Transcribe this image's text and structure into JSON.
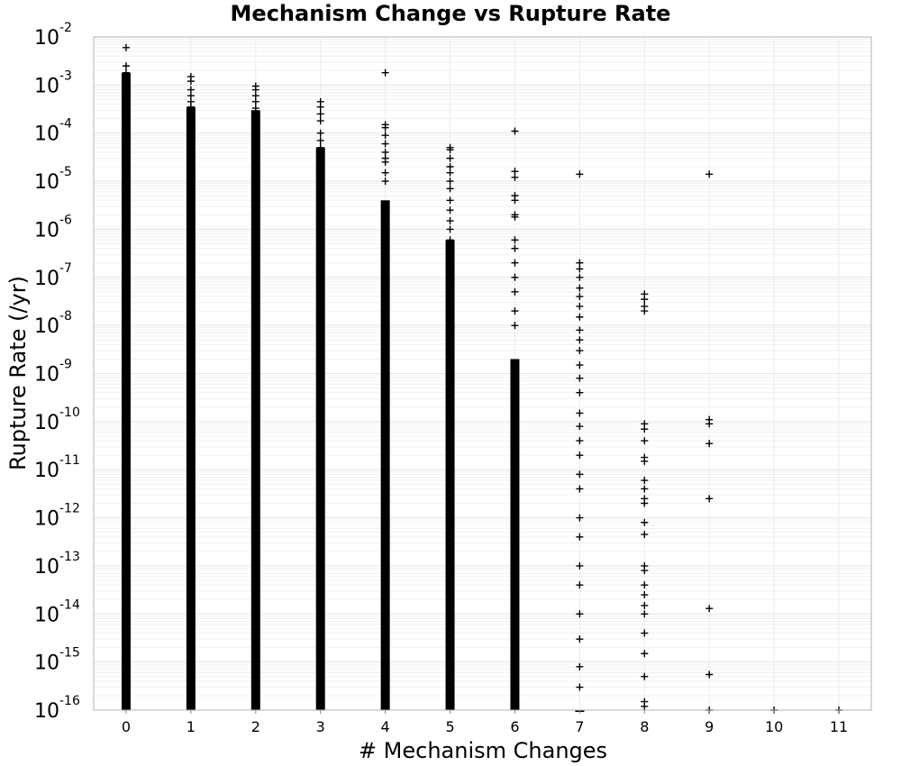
{
  "chart_data": {
    "type": "scatter",
    "title": "Mechanism Change vs Rupture Rate",
    "xlabel": "# Mechanism Changes",
    "ylabel": "Rupture Rate (/yr)",
    "xlim": [
      -0.5,
      11.5
    ],
    "ylim": [
      1e-16,
      0.01
    ],
    "y_scale": "log",
    "grid": true,
    "legend": "none",
    "marker": "plus",
    "marker_color": "#000000",
    "x_ticks": [
      "0",
      "1",
      "2",
      "3",
      "4",
      "5",
      "6",
      "7",
      "8",
      "9",
      "10",
      "11"
    ],
    "y_ticks": [
      {
        "base": "10",
        "exp": "-16"
      },
      {
        "base": "10",
        "exp": "-15"
      },
      {
        "base": "10",
        "exp": "-14"
      },
      {
        "base": "10",
        "exp": "-13"
      },
      {
        "base": "10",
        "exp": "-12"
      },
      {
        "base": "10",
        "exp": "-11"
      },
      {
        "base": "10",
        "exp": "-10"
      },
      {
        "base": "10",
        "exp": "-9"
      },
      {
        "base": "10",
        "exp": "-8"
      },
      {
        "base": "10",
        "exp": "-7"
      },
      {
        "base": "10",
        "exp": "-6"
      },
      {
        "base": "10",
        "exp": "-5"
      },
      {
        "base": "10",
        "exp": "-4"
      },
      {
        "base": "10",
        "exp": "-3"
      },
      {
        "base": "10",
        "exp": "-2"
      }
    ],
    "series": [
      {
        "points": [
          {
            "x": 0,
            "y": 0.006
          },
          {
            "x": 0,
            "y": 0.0025
          },
          {
            "x": 0,
            "y": 0.0018
          },
          {
            "x": 0,
            "y": 0.0015
          },
          {
            "x": 0,
            "y": 0.001
          },
          {
            "x": 0,
            "y": 0.0005
          },
          {
            "x": 1,
            "y": 0.0015
          },
          {
            "x": 1,
            "y": 0.0012
          },
          {
            "x": 1,
            "y": 0.0008
          },
          {
            "x": 1,
            "y": 0.0006
          },
          {
            "x": 1,
            "y": 0.00045
          },
          {
            "x": 1,
            "y": 0.00035
          },
          {
            "x": 2,
            "y": 0.00095
          },
          {
            "x": 2,
            "y": 0.0008
          },
          {
            "x": 2,
            "y": 0.0006
          },
          {
            "x": 2,
            "y": 0.00045
          },
          {
            "x": 2,
            "y": 0.00033
          },
          {
            "x": 3,
            "y": 0.00045
          },
          {
            "x": 3,
            "y": 0.00035
          },
          {
            "x": 3,
            "y": 0.00025
          },
          {
            "x": 3,
            "y": 0.00018
          },
          {
            "x": 3,
            "y": 0.0001
          },
          {
            "x": 3,
            "y": 7e-05
          },
          {
            "x": 3,
            "y": 5e-05
          },
          {
            "x": 4,
            "y": 0.0018
          },
          {
            "x": 4,
            "y": 0.00015
          },
          {
            "x": 4,
            "y": 0.00013
          },
          {
            "x": 4,
            "y": 9e-05
          },
          {
            "x": 4,
            "y": 6e-05
          },
          {
            "x": 4,
            "y": 4e-05
          },
          {
            "x": 4,
            "y": 3e-05
          },
          {
            "x": 4,
            "y": 2.5e-05
          },
          {
            "x": 4,
            "y": 1.5e-05
          },
          {
            "x": 4,
            "y": 1e-05
          },
          {
            "x": 5,
            "y": 5e-05
          },
          {
            "x": 5,
            "y": 4.5e-05
          },
          {
            "x": 5,
            "y": 3e-05
          },
          {
            "x": 5,
            "y": 2e-05
          },
          {
            "x": 5,
            "y": 1.5e-05
          },
          {
            "x": 5,
            "y": 1e-05
          },
          {
            "x": 5,
            "y": 7e-06
          },
          {
            "x": 5,
            "y": 4e-06
          },
          {
            "x": 5,
            "y": 2.5e-06
          },
          {
            "x": 5,
            "y": 1.5e-06
          },
          {
            "x": 5,
            "y": 1e-06
          },
          {
            "x": 5,
            "y": 6e-07
          },
          {
            "x": 6,
            "y": 0.00011
          },
          {
            "x": 6,
            "y": 1.6e-05
          },
          {
            "x": 6,
            "y": 1.2e-05
          },
          {
            "x": 6,
            "y": 5e-06
          },
          {
            "x": 6,
            "y": 4e-06
          },
          {
            "x": 6,
            "y": 2e-06
          },
          {
            "x": 6,
            "y": 1.8e-06
          },
          {
            "x": 6,
            "y": 6e-07
          },
          {
            "x": 6,
            "y": 4e-07
          },
          {
            "x": 6,
            "y": 2e-07
          },
          {
            "x": 6,
            "y": 1e-07
          },
          {
            "x": 6,
            "y": 5e-08
          },
          {
            "x": 6,
            "y": 2e-08
          },
          {
            "x": 6,
            "y": 1e-08
          },
          {
            "x": 7,
            "y": 1.4e-05
          },
          {
            "x": 7,
            "y": 2e-07
          },
          {
            "x": 7,
            "y": 1.5e-07
          },
          {
            "x": 7,
            "y": 1e-07
          },
          {
            "x": 7,
            "y": 6e-08
          },
          {
            "x": 7,
            "y": 4e-08
          },
          {
            "x": 7,
            "y": 2.5e-08
          },
          {
            "x": 7,
            "y": 1.5e-08
          },
          {
            "x": 7,
            "y": 8e-09
          },
          {
            "x": 7,
            "y": 5e-09
          },
          {
            "x": 7,
            "y": 3e-09
          },
          {
            "x": 7,
            "y": 1.5e-09
          },
          {
            "x": 7,
            "y": 8e-10
          },
          {
            "x": 7,
            "y": 4e-10
          },
          {
            "x": 7,
            "y": 1.5e-10
          },
          {
            "x": 7,
            "y": 8e-11
          },
          {
            "x": 7,
            "y": 4e-11
          },
          {
            "x": 7,
            "y": 2e-11
          },
          {
            "x": 7,
            "y": 8e-12
          },
          {
            "x": 7,
            "y": 4e-12
          },
          {
            "x": 7,
            "y": 1e-12
          },
          {
            "x": 7,
            "y": 4e-13
          },
          {
            "x": 7,
            "y": 1e-13
          },
          {
            "x": 7,
            "y": 4e-14
          },
          {
            "x": 7,
            "y": 1e-14
          },
          {
            "x": 7,
            "y": 3e-15
          },
          {
            "x": 7,
            "y": 8e-16
          },
          {
            "x": 7,
            "y": 3e-16
          },
          {
            "x": 8,
            "y": 4.5e-08
          },
          {
            "x": 8,
            "y": 3.5e-08
          },
          {
            "x": 8,
            "y": 2.5e-08
          },
          {
            "x": 8,
            "y": 2e-08
          },
          {
            "x": 8,
            "y": 9e-11
          },
          {
            "x": 8,
            "y": 7e-11
          },
          {
            "x": 8,
            "y": 4e-11
          },
          {
            "x": 8,
            "y": 1.8e-11
          },
          {
            "x": 8,
            "y": 1.5e-11
          },
          {
            "x": 8,
            "y": 6e-12
          },
          {
            "x": 8,
            "y": 4e-12
          },
          {
            "x": 8,
            "y": 2.5e-12
          },
          {
            "x": 8,
            "y": 2e-12
          },
          {
            "x": 8,
            "y": 8e-13
          },
          {
            "x": 8,
            "y": 4.5e-13
          },
          {
            "x": 8,
            "y": 1e-13
          },
          {
            "x": 8,
            "y": 8e-14
          },
          {
            "x": 8,
            "y": 4e-14
          },
          {
            "x": 8,
            "y": 2.5e-14
          },
          {
            "x": 8,
            "y": 1.5e-14
          },
          {
            "x": 8,
            "y": 1e-14
          },
          {
            "x": 8,
            "y": 4e-15
          },
          {
            "x": 8,
            "y": 1.5e-15
          },
          {
            "x": 8,
            "y": 5e-16
          },
          {
            "x": 8,
            "y": 1.5e-16
          },
          {
            "x": 8,
            "y": 1.2e-16
          },
          {
            "x": 9,
            "y": 1.4e-05
          },
          {
            "x": 9,
            "y": 1.1e-10
          },
          {
            "x": 9,
            "y": 9e-11
          },
          {
            "x": 9,
            "y": 3.5e-11
          },
          {
            "x": 9,
            "y": 2.5e-12
          },
          {
            "x": 9,
            "y": 1.3e-14
          },
          {
            "x": 9,
            "y": 5.5e-16
          },
          {
            "x": 9,
            "y": 1e-16
          },
          {
            "x": 10,
            "y": 1e-16
          },
          {
            "x": 11,
            "y": 1e-16
          }
        ]
      }
    ],
    "dense_columns": [
      {
        "x": 0,
        "y_min": 1e-16,
        "y_max": 0.0018
      },
      {
        "x": 1,
        "y_min": 1e-16,
        "y_max": 0.00035
      },
      {
        "x": 2,
        "y_min": 1e-16,
        "y_max": 0.0003
      },
      {
        "x": 3,
        "y_min": 1e-16,
        "y_max": 5e-05
      },
      {
        "x": 4,
        "y_min": 1e-16,
        "y_max": 4e-06
      },
      {
        "x": 5,
        "y_min": 1e-16,
        "y_max": 6e-07
      },
      {
        "x": 6,
        "y_min": 1e-16,
        "y_max": 2e-09
      },
      {
        "x": 7,
        "y_min": 1e-16,
        "y_max": 1e-16
      }
    ]
  }
}
